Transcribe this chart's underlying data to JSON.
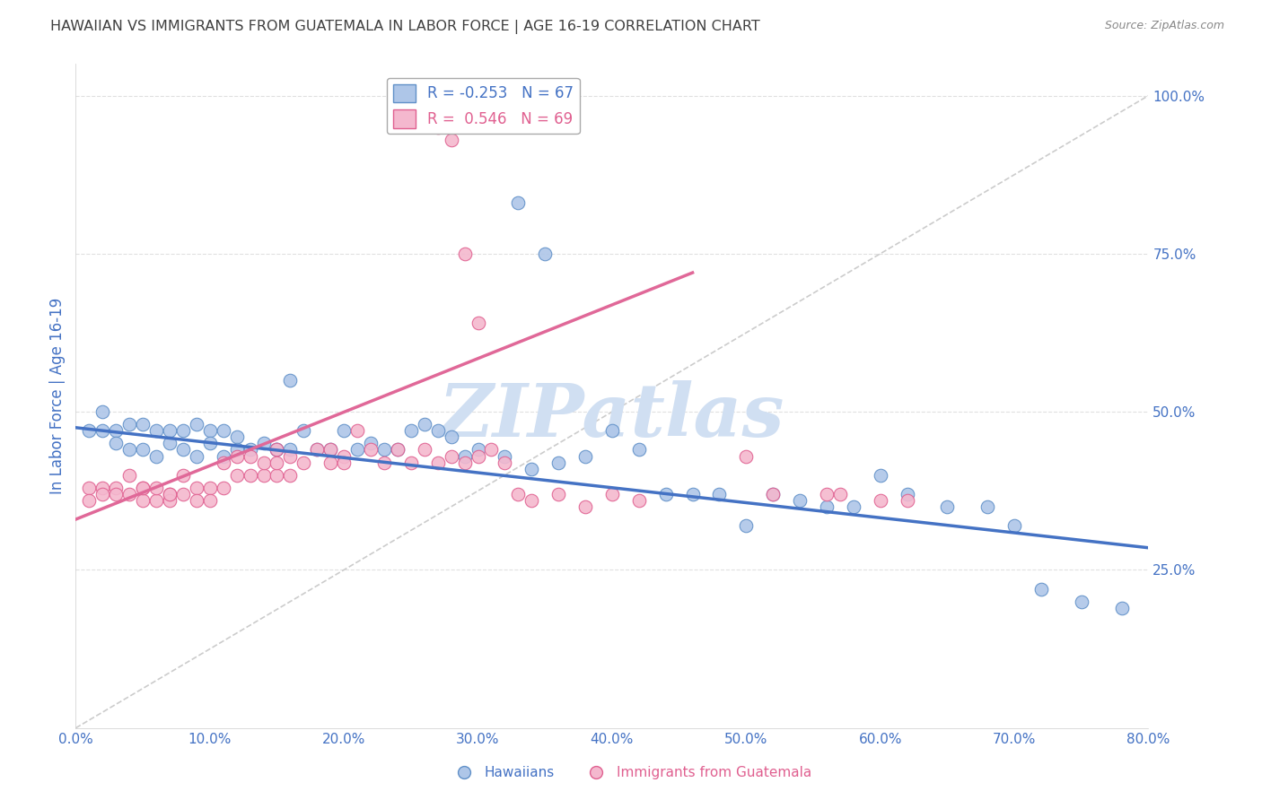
{
  "title": "HAWAIIAN VS IMMIGRANTS FROM GUATEMALA IN LABOR FORCE | AGE 16-19 CORRELATION CHART",
  "source": "Source: ZipAtlas.com",
  "ylabel": "In Labor Force | Age 16-19",
  "legend_label_blue": "Hawaiians",
  "legend_label_pink": "Immigrants from Guatemala",
  "blue_color": "#aec6e8",
  "pink_color": "#f4b8ce",
  "blue_edge_color": "#6090c8",
  "pink_edge_color": "#e06090",
  "blue_line_color": "#4472c4",
  "pink_line_color": "#e06898",
  "diag_line_color": "#cccccc",
  "watermark_color": "#d0dff2",
  "background_color": "#ffffff",
  "grid_color": "#e0e0e0",
  "title_color": "#404040",
  "axis_label_color": "#4472c4",
  "blue_R": -0.253,
  "pink_R": 0.546,
  "blue_N": 67,
  "pink_N": 69,
  "xmin": 0.0,
  "xmax": 0.8,
  "ymin": 0.0,
  "ymax": 1.05,
  "blue_x": [
    0.01,
    0.02,
    0.02,
    0.03,
    0.03,
    0.04,
    0.04,
    0.05,
    0.05,
    0.06,
    0.06,
    0.07,
    0.07,
    0.08,
    0.08,
    0.09,
    0.09,
    0.1,
    0.1,
    0.11,
    0.11,
    0.12,
    0.12,
    0.13,
    0.14,
    0.15,
    0.15,
    0.16,
    0.16,
    0.17,
    0.18,
    0.19,
    0.2,
    0.21,
    0.22,
    0.23,
    0.24,
    0.25,
    0.26,
    0.27,
    0.28,
    0.29,
    0.3,
    0.32,
    0.34,
    0.36,
    0.38,
    0.4,
    0.42,
    0.44,
    0.46,
    0.48,
    0.5,
    0.52,
    0.54,
    0.56,
    0.58,
    0.6,
    0.62,
    0.65,
    0.68,
    0.7,
    0.72,
    0.75,
    0.78,
    0.33,
    0.35
  ],
  "blue_y": [
    0.47,
    0.5,
    0.47,
    0.47,
    0.45,
    0.48,
    0.44,
    0.48,
    0.44,
    0.47,
    0.43,
    0.47,
    0.45,
    0.47,
    0.44,
    0.48,
    0.43,
    0.47,
    0.45,
    0.47,
    0.43,
    0.46,
    0.44,
    0.44,
    0.45,
    0.44,
    0.44,
    0.55,
    0.44,
    0.47,
    0.44,
    0.44,
    0.47,
    0.44,
    0.45,
    0.44,
    0.44,
    0.47,
    0.48,
    0.47,
    0.46,
    0.43,
    0.44,
    0.43,
    0.41,
    0.42,
    0.43,
    0.47,
    0.44,
    0.37,
    0.37,
    0.37,
    0.32,
    0.37,
    0.36,
    0.35,
    0.35,
    0.4,
    0.37,
    0.35,
    0.35,
    0.32,
    0.22,
    0.2,
    0.19,
    0.83,
    0.75
  ],
  "pink_x": [
    0.01,
    0.01,
    0.02,
    0.02,
    0.03,
    0.03,
    0.04,
    0.04,
    0.05,
    0.05,
    0.05,
    0.06,
    0.06,
    0.07,
    0.07,
    0.07,
    0.08,
    0.08,
    0.09,
    0.09,
    0.1,
    0.1,
    0.11,
    0.11,
    0.12,
    0.12,
    0.13,
    0.13,
    0.14,
    0.14,
    0.15,
    0.15,
    0.15,
    0.16,
    0.16,
    0.17,
    0.18,
    0.19,
    0.19,
    0.2,
    0.2,
    0.21,
    0.22,
    0.23,
    0.24,
    0.25,
    0.26,
    0.27,
    0.28,
    0.29,
    0.3,
    0.31,
    0.32,
    0.33,
    0.34,
    0.36,
    0.38,
    0.4,
    0.42,
    0.5,
    0.52,
    0.56,
    0.57,
    0.6,
    0.62,
    0.27,
    0.28,
    0.29,
    0.3
  ],
  "pink_y": [
    0.38,
    0.36,
    0.38,
    0.37,
    0.38,
    0.37,
    0.4,
    0.37,
    0.38,
    0.36,
    0.38,
    0.36,
    0.38,
    0.37,
    0.36,
    0.37,
    0.4,
    0.37,
    0.38,
    0.36,
    0.38,
    0.36,
    0.38,
    0.42,
    0.4,
    0.43,
    0.4,
    0.43,
    0.4,
    0.42,
    0.4,
    0.44,
    0.42,
    0.4,
    0.43,
    0.42,
    0.44,
    0.42,
    0.44,
    0.43,
    0.42,
    0.47,
    0.44,
    0.42,
    0.44,
    0.42,
    0.44,
    0.42,
    0.43,
    0.42,
    0.43,
    0.44,
    0.42,
    0.37,
    0.36,
    0.37,
    0.35,
    0.37,
    0.36,
    0.43,
    0.37,
    0.37,
    0.37,
    0.36,
    0.36,
    0.95,
    0.93,
    0.75,
    0.64
  ],
  "blue_line_x0": 0.0,
  "blue_line_y0": 0.475,
  "blue_line_x1": 0.8,
  "blue_line_y1": 0.285,
  "pink_line_x0": 0.0,
  "pink_line_y0": 0.33,
  "pink_line_x1": 0.46,
  "pink_line_y1": 0.72
}
